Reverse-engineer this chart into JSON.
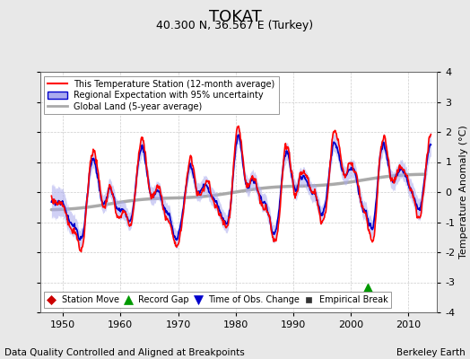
{
  "title": "TOKAT",
  "subtitle": "40.300 N, 36.567 E (Turkey)",
  "xlabel_left": "Data Quality Controlled and Aligned at Breakpoints",
  "xlabel_right": "Berkeley Earth",
  "ylabel": "Temperature Anomaly (°C)",
  "xlim": [
    1946,
    2015
  ],
  "ylim": [
    -4,
    4
  ],
  "yticks": [
    -4,
    -3,
    -2,
    -1,
    0,
    1,
    2,
    3,
    4
  ],
  "xticks": [
    1950,
    1960,
    1970,
    1980,
    1990,
    2000,
    2010
  ],
  "legend_entries": [
    {
      "label": "This Temperature Station (12-month average)",
      "color": "#ff0000",
      "lw": 1.5
    },
    {
      "label": "Regional Expectation with 95% uncertainty",
      "color": "#0000cc",
      "band_color": "#aaaaee",
      "lw": 1.5
    },
    {
      "label": "Global Land (5-year average)",
      "color": "#aaaaaa",
      "lw": 2.0
    }
  ],
  "marker_legend": [
    {
      "label": "Station Move",
      "marker": "D",
      "color": "#cc0000",
      "ms": 5
    },
    {
      "label": "Record Gap",
      "marker": "^",
      "color": "#009900",
      "ms": 7
    },
    {
      "label": "Time of Obs. Change",
      "marker": "v",
      "color": "#0000cc",
      "ms": 7
    },
    {
      "label": "Empirical Break",
      "marker": "s",
      "color": "#333333",
      "ms": 5
    }
  ],
  "record_gap_x": 2003,
  "record_gap_y": -3.2,
  "background_color": "#e8e8e8",
  "plot_bg_color": "#ffffff",
  "grid_color": "#cccccc",
  "title_fontsize": 13,
  "subtitle_fontsize": 9,
  "tick_fontsize": 8,
  "label_fontsize": 7.5
}
